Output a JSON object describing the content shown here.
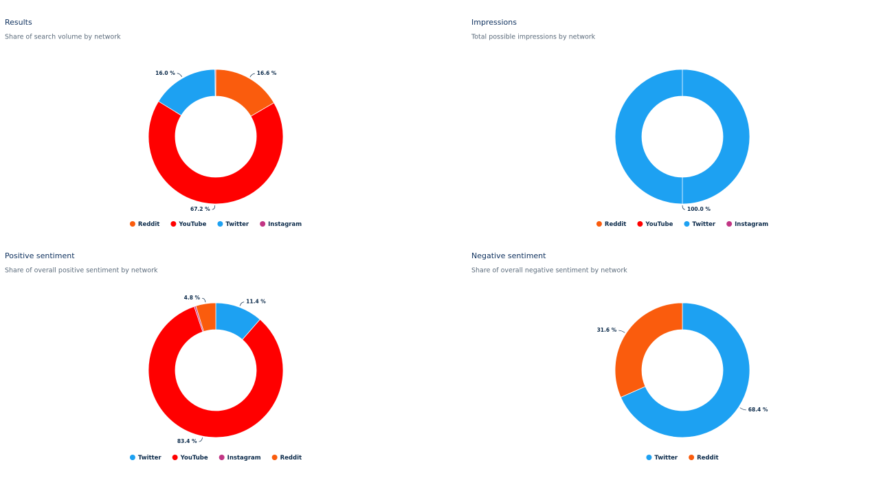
{
  "chart_data": [
    {
      "type": "donut",
      "title": "Results",
      "subtitle": "Share of search volume by network",
      "categories": [
        "Reddit",
        "YouTube",
        "Twitter",
        "Instagram"
      ],
      "values": [
        16.6,
        67.2,
        16.0,
        0.2
      ],
      "value_labels": [
        "16.6 %",
        "67.2 %",
        "16.0 %",
        null
      ],
      "colors": [
        "#fa5c0d",
        "#ff0000",
        "#1da1f2",
        "#c13584"
      ]
    },
    {
      "type": "donut",
      "title": "Impressions",
      "subtitle": "Total possible impressions by network",
      "categories": [
        "Reddit",
        "YouTube",
        "Twitter",
        "Instagram"
      ],
      "values": [
        0,
        0,
        100.0,
        0
      ],
      "value_labels": [
        null,
        null,
        "100.0 %",
        null
      ],
      "colors": [
        "#fa5c0d",
        "#ff0000",
        "#1da1f2",
        "#c13584"
      ]
    },
    {
      "type": "donut",
      "title": "Positive sentiment",
      "subtitle": "Share of overall positive sentiment by network",
      "categories": [
        "Twitter",
        "YouTube",
        "Instagram",
        "Reddit"
      ],
      "values": [
        11.4,
        83.4,
        0.4,
        4.8
      ],
      "value_labels": [
        "11.4 %",
        "83.4 %",
        null,
        "4.8 %"
      ],
      "colors": [
        "#1da1f2",
        "#ff0000",
        "#c13584",
        "#fa5c0d"
      ]
    },
    {
      "type": "donut",
      "title": "Negative sentiment",
      "subtitle": "Share of overall negative sentiment by network",
      "categories": [
        "Twitter",
        "Reddit"
      ],
      "values": [
        68.4,
        31.6
      ],
      "value_labels": [
        "68.4 %",
        "31.6 %"
      ],
      "colors": [
        "#1da1f2",
        "#fa5c0d"
      ]
    }
  ]
}
